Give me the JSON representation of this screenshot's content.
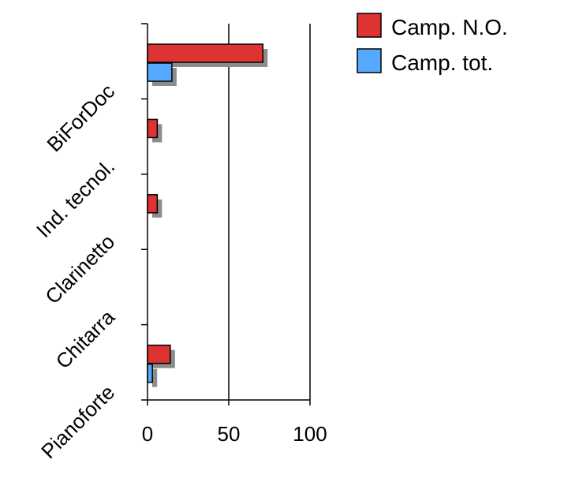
{
  "chart_data": {
    "type": "bar",
    "orientation": "horizontal",
    "categories": [
      "BiForDoc",
      "Ind. tecnol.",
      "Clarinetto",
      "Chitarra",
      "Pianoforte"
    ],
    "series": [
      {
        "name": "Camp. N.O.",
        "color": "#dd3333",
        "values": [
          71,
          6,
          6,
          0,
          14
        ]
      },
      {
        "name": "Camp. tot.",
        "color": "#55aaff",
        "values": [
          15,
          0,
          0,
          0,
          3
        ]
      }
    ],
    "xlim": [
      0,
      100
    ],
    "xticks": [
      "0",
      "50",
      "100"
    ],
    "title": "",
    "xlabel": "",
    "ylabel": "",
    "grid": "vertical",
    "legend": "top-right",
    "shadow": true
  }
}
